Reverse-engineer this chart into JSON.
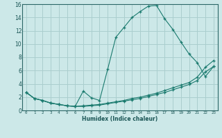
{
  "xlabel": "Humidex (Indice chaleur)",
  "bg_color": "#cce8e8",
  "grid_color": "#aacece",
  "line_color": "#1a7a6e",
  "xlim": [
    -0.5,
    23.5
  ],
  "ylim": [
    0,
    16
  ],
  "xticks": [
    0,
    1,
    2,
    3,
    4,
    5,
    6,
    7,
    8,
    9,
    10,
    11,
    12,
    13,
    14,
    15,
    16,
    17,
    18,
    19,
    20,
    21,
    22,
    23
  ],
  "yticks": [
    0,
    2,
    4,
    6,
    8,
    10,
    12,
    14,
    16
  ],
  "series1_x": [
    0,
    1,
    2,
    3,
    4,
    5,
    6,
    7,
    8,
    9,
    10,
    11,
    12,
    13,
    14,
    15,
    16,
    17,
    18,
    19,
    20,
    21,
    22,
    23
  ],
  "series1_y": [
    2.7,
    1.8,
    1.5,
    1.1,
    0.9,
    0.7,
    0.6,
    2.9,
    1.9,
    1.5,
    6.2,
    11.0,
    12.5,
    14.0,
    14.9,
    15.7,
    15.8,
    13.8,
    12.2,
    10.3,
    8.5,
    7.2,
    5.1,
    6.6
  ],
  "series2_x": [
    0,
    1,
    2,
    3,
    4,
    5,
    6,
    7,
    8,
    9,
    10,
    11,
    12,
    13,
    14,
    15,
    16,
    17,
    18,
    19,
    20,
    21,
    22,
    23
  ],
  "series2_y": [
    2.7,
    1.8,
    1.5,
    1.1,
    0.9,
    0.7,
    0.6,
    0.7,
    0.8,
    0.9,
    1.1,
    1.3,
    1.5,
    1.8,
    2.0,
    2.3,
    2.6,
    3.0,
    3.4,
    3.8,
    4.2,
    5.0,
    6.5,
    7.5
  ],
  "series3_x": [
    0,
    1,
    2,
    3,
    4,
    5,
    6,
    7,
    8,
    9,
    10,
    11,
    12,
    13,
    14,
    15,
    16,
    17,
    18,
    19,
    20,
    21,
    22,
    23
  ],
  "series3_y": [
    2.7,
    1.8,
    1.5,
    1.1,
    0.9,
    0.7,
    0.6,
    0.6,
    0.7,
    0.8,
    1.0,
    1.2,
    1.4,
    1.6,
    1.8,
    2.1,
    2.4,
    2.7,
    3.1,
    3.5,
    3.9,
    4.5,
    5.8,
    6.6
  ]
}
